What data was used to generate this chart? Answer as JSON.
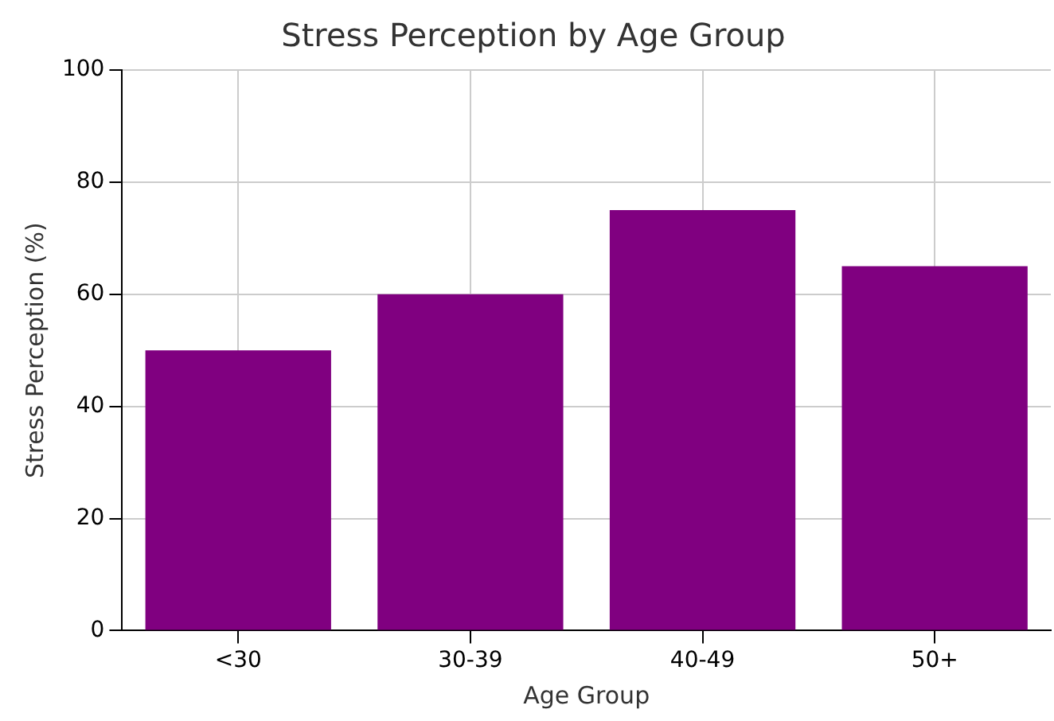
{
  "chart_data": {
    "type": "bar",
    "title": "Stress Perception by Age Group",
    "xlabel": "Age Group",
    "ylabel": "Stress Perception (%)",
    "categories": [
      "<30",
      "30-39",
      "40-49",
      "50+"
    ],
    "values": [
      50,
      60,
      75,
      65
    ],
    "color": "#800080",
    "ylim": [
      0,
      100
    ],
    "yticks": [
      0,
      20,
      40,
      60,
      80,
      100
    ],
    "grid": true,
    "legend": false
  }
}
